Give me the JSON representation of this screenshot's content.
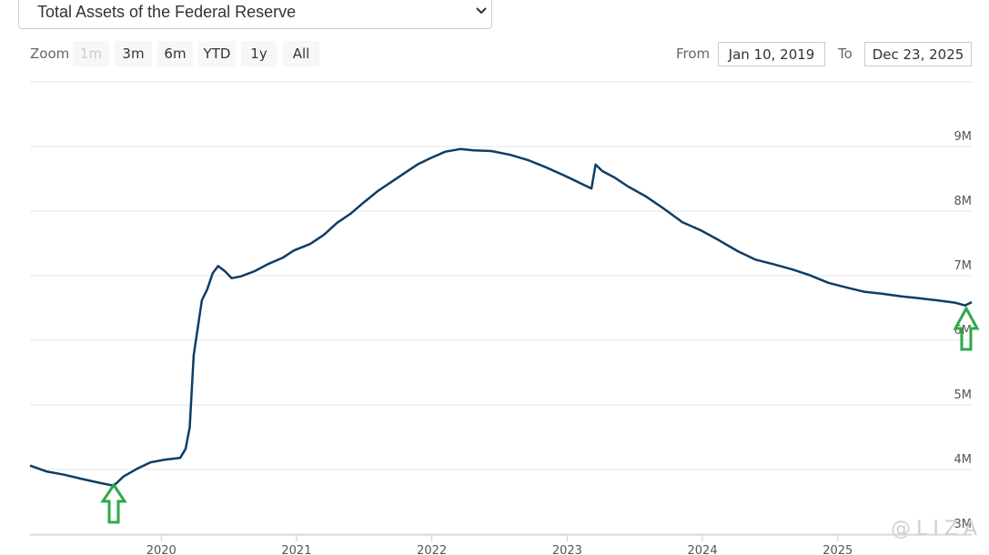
{
  "controls": {
    "zoom_label": "Zoom",
    "zoom_buttons": [
      "1m",
      "3m",
      "6m",
      "YTD",
      "1y",
      "All"
    ],
    "from_label": "From",
    "from": "Jan 10, 2019",
    "to_label": "To",
    "to": "Dec 23, 2025"
  },
  "watermark": "@LIZA",
  "chart_data": {
    "type": "line",
    "title": "Total Assets of the Federal Reserve",
    "color": "#0f3d66",
    "x": [
      2019.03,
      2019.15,
      2019.28,
      2019.42,
      2019.55,
      2019.65,
      2019.72,
      2019.82,
      2019.92,
      2020.02,
      2020.14,
      2020.18,
      2020.21,
      2020.24,
      2020.28,
      2020.3,
      2020.34,
      2020.38,
      2020.42,
      2020.47,
      2020.52,
      2020.59,
      2020.69,
      2020.79,
      2020.9,
      2020.98,
      2021.1,
      2021.2,
      2021.3,
      2021.4,
      2021.5,
      2021.6,
      2021.7,
      2021.8,
      2021.9,
      2022.0,
      2022.1,
      2022.21,
      2022.31,
      2022.44,
      2022.58,
      2022.71,
      2022.84,
      2022.98,
      2023.11,
      2023.18,
      2023.21,
      2023.26,
      2023.35,
      2023.45,
      2023.58,
      2023.72,
      2023.85,
      2023.99,
      2024.12,
      2024.26,
      2024.39,
      2024.52,
      2024.66,
      2024.79,
      2024.93,
      2025.06,
      2025.2,
      2025.33,
      2025.47,
      2025.6,
      2025.73,
      2025.87,
      2025.94,
      2025.99
    ],
    "values": [
      4060000,
      3970000,
      3920000,
      3850000,
      3790000,
      3750000,
      3890000,
      4010000,
      4110000,
      4150000,
      4180000,
      4320000,
      4650000,
      5770000,
      6340000,
      6620000,
      6790000,
      7040000,
      7150000,
      7070000,
      6960000,
      6990000,
      7070000,
      7180000,
      7280000,
      7390000,
      7490000,
      7630000,
      7820000,
      7960000,
      8140000,
      8310000,
      8450000,
      8590000,
      8730000,
      8830000,
      8920000,
      8960000,
      8940000,
      8930000,
      8870000,
      8790000,
      8680000,
      8550000,
      8420000,
      8350000,
      8720000,
      8620000,
      8520000,
      8380000,
      8230000,
      8030000,
      7830000,
      7700000,
      7550000,
      7380000,
      7250000,
      7180000,
      7100000,
      7010000,
      6890000,
      6820000,
      6750000,
      6720000,
      6680000,
      6650000,
      6620000,
      6580000,
      6540000,
      6590000
    ],
    "xlim": [
      2019.03,
      2025.99
    ],
    "xticks": [
      2020,
      2021,
      2022,
      2023,
      2024,
      2025
    ],
    "ylim": [
      3000000,
      10000000
    ],
    "yticks": [
      {
        "value": 3000000,
        "label": "3M"
      },
      {
        "value": 4000000,
        "label": "4M"
      },
      {
        "value": 5000000,
        "label": "5M"
      },
      {
        "value": 6000000,
        "label": "6M"
      },
      {
        "value": 7000000,
        "label": "7M"
      },
      {
        "value": 8000000,
        "label": "8M"
      },
      {
        "value": 9000000,
        "label": "9M"
      }
    ],
    "grid": true
  }
}
